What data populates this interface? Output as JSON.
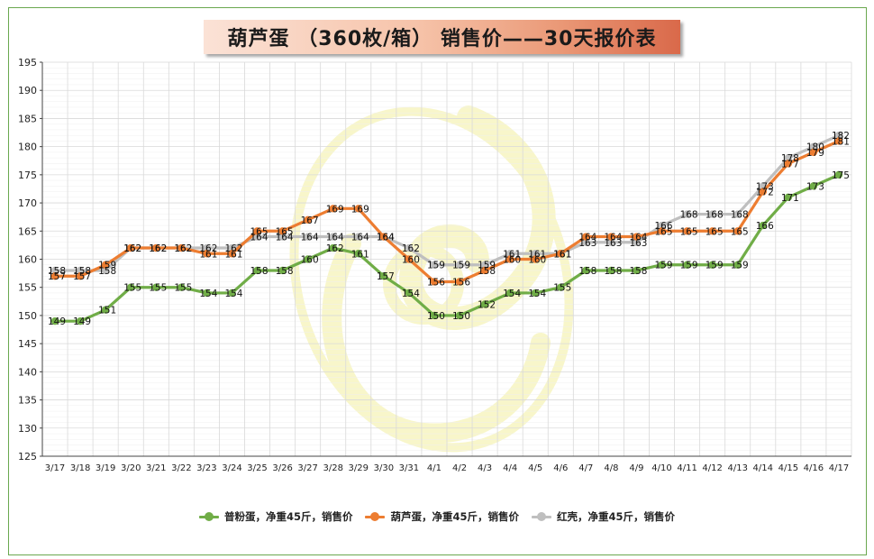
{
  "chart_data": {
    "type": "line",
    "title": "葫芦蛋 （360枚/箱） 销售价——30天报价表",
    "xlabel": "",
    "ylabel": "",
    "ylim": [
      125,
      195
    ],
    "ytick_step": 5,
    "grid": true,
    "legend_position": "bottom",
    "categories": [
      "3/17",
      "3/18",
      "3/19",
      "3/20",
      "3/21",
      "3/22",
      "3/23",
      "3/24",
      "3/25",
      "3/26",
      "3/27",
      "3/28",
      "3/29",
      "3/30",
      "3/31",
      "4/1",
      "4/2",
      "4/3",
      "4/4",
      "4/5",
      "4/6",
      "4/7",
      "4/8",
      "4/9",
      "4/10",
      "4/11",
      "4/12",
      "4/13",
      "4/14",
      "4/15",
      "4/16",
      "4/17"
    ],
    "series": [
      {
        "name": "普粉蛋，净重45斤，销售价",
        "color": "#70ad47",
        "values": [
          149,
          149,
          151,
          155,
          155,
          155,
          154,
          154,
          158,
          158,
          160,
          162,
          161,
          157,
          154,
          150,
          150,
          152,
          154,
          154,
          155,
          158,
          158,
          158,
          159,
          159,
          159,
          159,
          166,
          171,
          173,
          175
        ]
      },
      {
        "name": "葫芦蛋，净重45斤，销售价",
        "color": "#ed7d31",
        "values": [
          157,
          157,
          159,
          162,
          162,
          162,
          161,
          161,
          165,
          165,
          167,
          169,
          169,
          164,
          160,
          156,
          156,
          158,
          160,
          160,
          161,
          164,
          164,
          164,
          165,
          165,
          165,
          165,
          172,
          177,
          179,
          181
        ]
      },
      {
        "name": "红壳，净重45斤，销售价",
        "color": "#bfbfbf",
        "values": [
          158,
          158,
          158,
          162,
          162,
          162,
          162,
          162,
          164,
          164,
          164,
          164,
          164,
          164,
          162,
          159,
          159,
          159,
          161,
          161,
          161,
          163,
          163,
          163,
          166,
          168,
          168,
          168,
          173,
          178,
          180,
          182
        ]
      }
    ]
  }
}
